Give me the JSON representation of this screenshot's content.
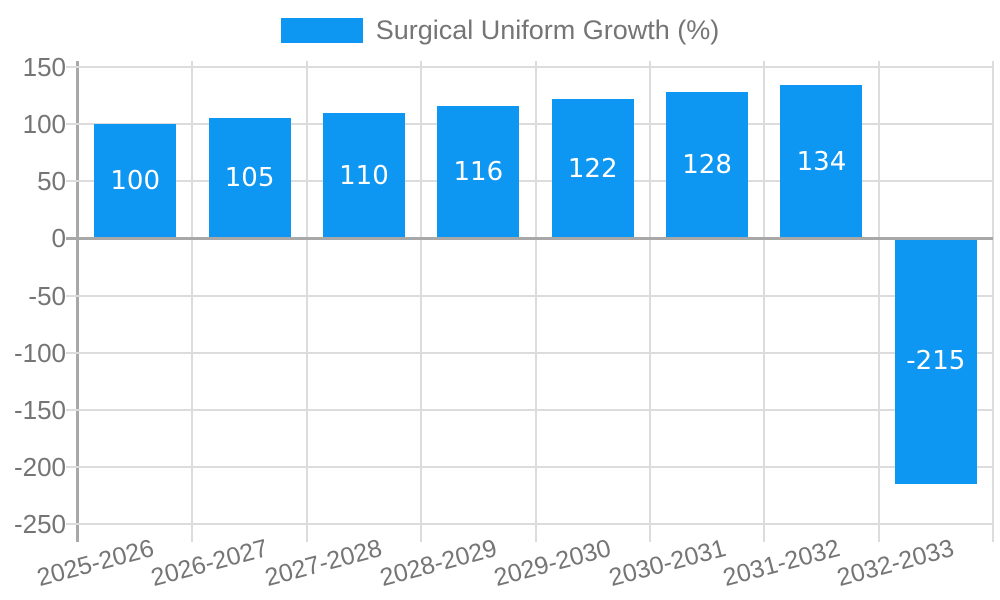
{
  "legend": {
    "label": "Surgical Uniform Growth (%)"
  },
  "chart_data": {
    "type": "bar",
    "title": "",
    "xlabel": "",
    "ylabel": "",
    "categories": [
      "2025-2026",
      "2026-2027",
      "2027-2028",
      "2028-2029",
      "2029-2030",
      "2030-2031",
      "2031-2032",
      "2032-2033"
    ],
    "values": [
      100,
      105,
      110,
      116,
      122,
      128,
      134,
      -215
    ],
    "series_name": "Surgical Uniform Growth (%)",
    "ylim": [
      -250,
      150
    ],
    "yticks": [
      150,
      100,
      50,
      0,
      -50,
      -100,
      -150,
      -200,
      -250
    ],
    "grid": true,
    "legend_position": "top-center",
    "bar_labels_inside": true
  },
  "colors": {
    "bar": "#0d96f2",
    "axis_text": "#757575",
    "bar_label_text": "#ffffff",
    "gridline": "#dcdcdc",
    "baseline": "#a8a8a8",
    "background": "#ffffff"
  }
}
